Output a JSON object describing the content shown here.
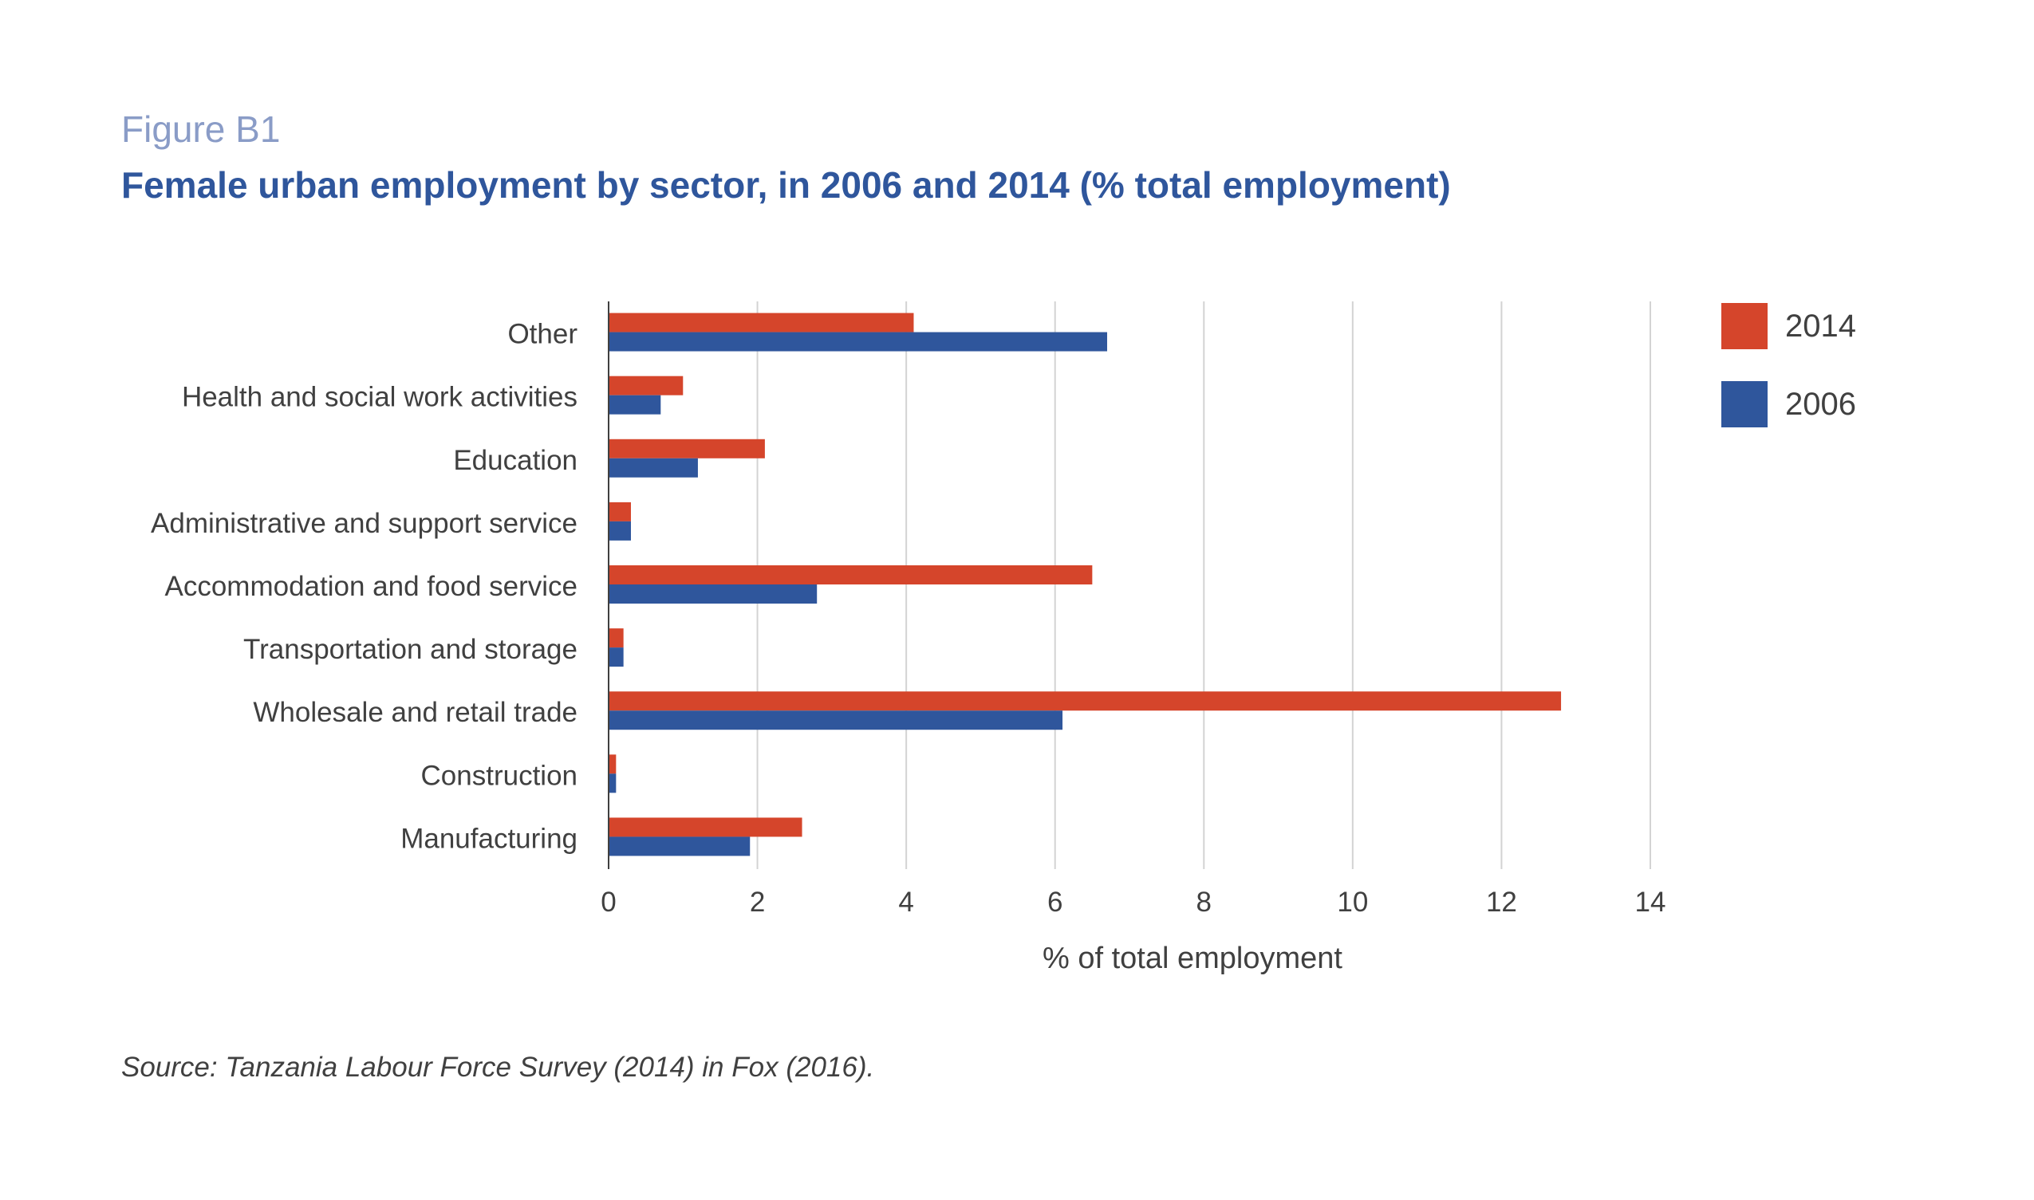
{
  "figure_label": "Figure B1",
  "title": "Female urban employment by sector, in 2006 and 2014 (% total employment)",
  "source": "Source: Tanzania Labour Force Survey (2014) in Fox (2016).",
  "colors": {
    "series_2014": "#d5452b",
    "series_2006": "#2f569c",
    "title": "#2f569c",
    "figure_label": "#8a9cc7",
    "grid": "#d3d3d3",
    "text": "#404040"
  },
  "chart_data": {
    "type": "bar",
    "orientation": "horizontal",
    "categories": [
      "Other",
      "Health and social work activities",
      "Education",
      "Administrative and support service",
      "Accommodation and food service",
      "Transportation and storage",
      "Wholesale and retail trade",
      "Construction",
      "Manufacturing"
    ],
    "series": [
      {
        "name": "2014",
        "values": [
          4.1,
          1.0,
          2.1,
          0.3,
          6.5,
          0.2,
          12.8,
          0.1,
          2.6
        ]
      },
      {
        "name": "2006",
        "values": [
          6.7,
          0.7,
          1.2,
          0.3,
          2.8,
          0.2,
          6.1,
          0.1,
          1.9
        ]
      }
    ],
    "xlabel": "% of total employment",
    "xlim": [
      0,
      14
    ],
    "xticks": [
      0,
      2,
      4,
      6,
      8,
      10,
      12,
      14
    ],
    "grid": true,
    "legend_position": "top-right"
  }
}
